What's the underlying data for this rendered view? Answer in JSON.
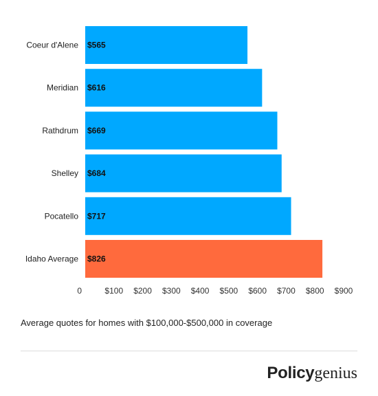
{
  "chart_data": {
    "type": "bar",
    "orientation": "horizontal",
    "categories": [
      "Coeur d'Alene",
      "Meridian",
      "Rathdrum",
      "Shelley",
      "Pocatello",
      "Idaho Average"
    ],
    "values": [
      565,
      616,
      669,
      684,
      717,
      826
    ],
    "value_labels": [
      "$565",
      "$616",
      "$669",
      "$684",
      "$717",
      "$826"
    ],
    "bar_colors": [
      "#00a8ff",
      "#00a8ff",
      "#00a8ff",
      "#00a8ff",
      "#00a8ff",
      "#ff6a3d"
    ],
    "xlim": [
      0,
      900
    ],
    "x_ticks": [
      0,
      100,
      200,
      300,
      400,
      500,
      600,
      700,
      800,
      900
    ],
    "x_tick_labels": [
      "0",
      "$100",
      "$200",
      "$300",
      "$400",
      "$500",
      "$600",
      "$700",
      "$800",
      "$900"
    ],
    "grid": false,
    "title": "",
    "xlabel": "",
    "ylabel": ""
  },
  "caption": "Average quotes for homes with $100,000-$500,000 in coverage",
  "brand": {
    "part1": "Policy",
    "part2": "genius"
  }
}
